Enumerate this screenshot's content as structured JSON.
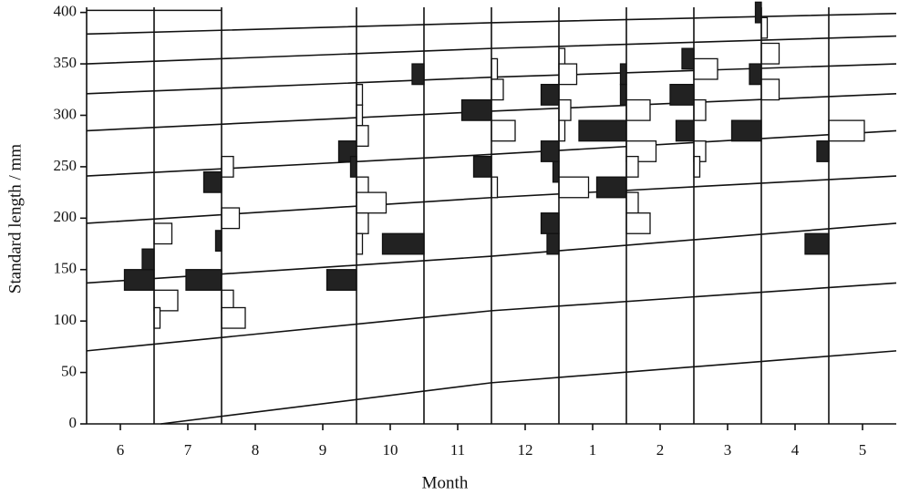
{
  "chart_data": {
    "type": "length-frequency",
    "y_label": "Standard length / mm",
    "x_label": "Month",
    "categories": [
      "6",
      "7",
      "8",
      "9",
      "10",
      "11",
      "12",
      "1",
      "2",
      "3",
      "4",
      "5"
    ],
    "xlim": [
      -0.5,
      11.5
    ],
    "ylim": [
      0,
      405
    ],
    "yticks": [
      0,
      50,
      100,
      150,
      200,
      250,
      300,
      350,
      400
    ],
    "left_color": "#222222",
    "right_color": "#ffffff",
    "line_color": "#111111",
    "samples": [
      {
        "x": 0.5,
        "left": [
          [
            130,
            150,
            5
          ],
          [
            150,
            170,
            2
          ]
        ],
        "right": [
          [
            175,
            195,
            3
          ],
          [
            110,
            130,
            4
          ],
          [
            93,
            113,
            1
          ]
        ]
      },
      {
        "x": 1.5,
        "left": [
          [
            130,
            150,
            6
          ],
          [
            225,
            245,
            3
          ],
          [
            168,
            188,
            1
          ]
        ],
        "right": [
          [
            240,
            260,
            2
          ],
          [
            190,
            210,
            3
          ],
          [
            110,
            130,
            2
          ],
          [
            93,
            113,
            4
          ]
        ]
      },
      {
        "x": 3.5,
        "left": [
          [
            130,
            150,
            5
          ],
          [
            255,
            275,
            3
          ],
          [
            240,
            260,
            1
          ]
        ],
        "right": [
          [
            310,
            330,
            1
          ],
          [
            290,
            310,
            1
          ],
          [
            270,
            290,
            2
          ],
          [
            220,
            240,
            2
          ],
          [
            205,
            225,
            5
          ],
          [
            185,
            205,
            2
          ],
          [
            165,
            185,
            1
          ]
        ]
      },
      {
        "x": 4.5,
        "left": [
          [
            165,
            185,
            7
          ],
          [
            330,
            350,
            2
          ]
        ],
        "right": []
      },
      {
        "x": 5.5,
        "left": [
          [
            295,
            315,
            5
          ],
          [
            240,
            260,
            3
          ]
        ],
        "right": [
          [
            335,
            355,
            1
          ],
          [
            315,
            335,
            2
          ],
          [
            275,
            295,
            4
          ],
          [
            220,
            240,
            1
          ]
        ]
      },
      {
        "x": 6.5,
        "left": [
          [
            310,
            330,
            3
          ],
          [
            255,
            275,
            3
          ],
          [
            235,
            255,
            1
          ],
          [
            185,
            205,
            3
          ],
          [
            165,
            185,
            2
          ]
        ],
        "right": [
          [
            345,
            365,
            1
          ],
          [
            330,
            350,
            3
          ],
          [
            295,
            315,
            2
          ],
          [
            275,
            295,
            1
          ],
          [
            220,
            240,
            5
          ]
        ]
      },
      {
        "x": 7.5,
        "left": [
          [
            275,
            295,
            8
          ],
          [
            220,
            240,
            5
          ],
          [
            330,
            350,
            1
          ],
          [
            310,
            330,
            1
          ]
        ],
        "right": [
          [
            295,
            315,
            4
          ],
          [
            255,
            275,
            5
          ],
          [
            240,
            260,
            2
          ],
          [
            205,
            225,
            2
          ],
          [
            185,
            205,
            4
          ]
        ]
      },
      {
        "x": 8.5,
        "left": [
          [
            345,
            365,
            2
          ],
          [
            310,
            330,
            4
          ],
          [
            275,
            295,
            3
          ]
        ],
        "right": [
          [
            335,
            355,
            4
          ],
          [
            295,
            315,
            2
          ],
          [
            255,
            275,
            2
          ],
          [
            240,
            260,
            1
          ]
        ]
      },
      {
        "x": 9.5,
        "left": [
          [
            390,
            410,
            1
          ],
          [
            330,
            350,
            2
          ],
          [
            275,
            295,
            5
          ]
        ],
        "right": [
          [
            375,
            395,
            1
          ],
          [
            350,
            370,
            3
          ],
          [
            315,
            335,
            3
          ]
        ]
      },
      {
        "x": 10.5,
        "left": [
          [
            255,
            275,
            2
          ],
          [
            165,
            185,
            4
          ]
        ],
        "right": [
          [
            275,
            295,
            6
          ]
        ]
      }
    ],
    "curves": [
      {
        "x": [
          -0.5,
          1.5
        ],
        "values": [
          402,
          402
        ]
      },
      {
        "x": [
          -0.5,
          5.5,
          11.5
        ],
        "values": [
          379,
          390,
          399
        ]
      },
      {
        "x": [
          -0.5,
          5.5,
          11.5
        ],
        "values": [
          350,
          365,
          377
        ]
      },
      {
        "x": [
          -0.5,
          5.5,
          11.5
        ],
        "values": [
          321,
          337,
          350
        ]
      },
      {
        "x": [
          -0.5,
          5.5,
          11.5
        ],
        "values": [
          285,
          304,
          321
        ]
      },
      {
        "x": [
          -0.5,
          5.5,
          11.5
        ],
        "values": [
          241,
          262,
          285
        ]
      },
      {
        "x": [
          -0.5,
          5.5,
          11.5
        ],
        "values": [
          195,
          220,
          241
        ]
      },
      {
        "x": [
          -0.5,
          5.5,
          11.5
        ],
        "values": [
          137,
          163,
          195
        ]
      },
      {
        "x": [
          -0.5,
          5.5,
          11.5
        ],
        "values": [
          71,
          110,
          137
        ]
      },
      {
        "x": [
          0.6,
          5.5,
          11.5
        ],
        "values": [
          0,
          40,
          71
        ]
      }
    ]
  }
}
